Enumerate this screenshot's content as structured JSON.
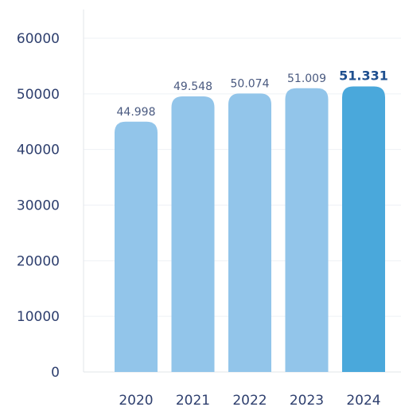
{
  "chart_data": {
    "type": "bar",
    "title": "",
    "xlabel": "",
    "ylabel": "",
    "categories": [
      "2020",
      "2021",
      "2022",
      "2023",
      "2024"
    ],
    "values": [
      44998,
      49548,
      50074,
      51009,
      51331
    ],
    "value_labels": [
      "44.998",
      "49.548",
      "50.074",
      "51.009",
      "51.331"
    ],
    "y_ticks": [
      "0",
      "10000",
      "20000",
      "30000",
      "40000",
      "50000",
      "60000"
    ],
    "ylim": [
      0,
      60000
    ],
    "grid": true,
    "legend": "none",
    "highlight_index": 4,
    "colors": {
      "bar": "#92c5ea",
      "bar_highlight": "#4aa8db",
      "tick_text": "#2e3f6e",
      "value_text": "#4a5a80",
      "highlight_text": "#1e4f8f",
      "grid": "#eef1f5"
    }
  }
}
